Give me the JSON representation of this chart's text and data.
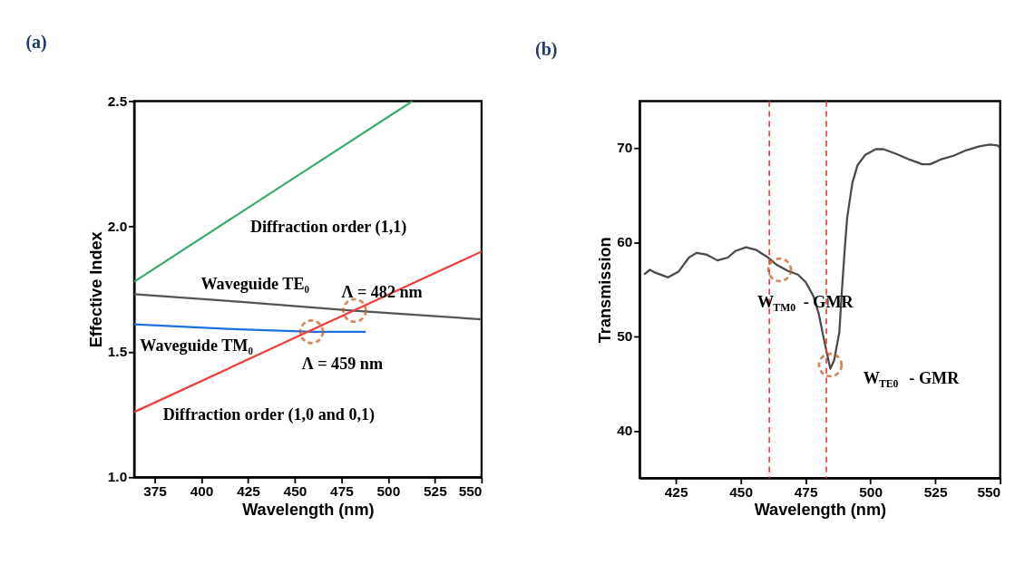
{
  "chart_data": [
    {
      "type": "line",
      "title": "(a)",
      "xlabel": "Wavelength (nm)",
      "ylabel": "Effective Index",
      "xlim": [
        364,
        550
      ],
      "xticks": [
        375,
        400,
        425,
        450,
        475,
        500,
        525,
        550
      ],
      "ylim": [
        1.0,
        2.5
      ],
      "yticks": [
        {
          "value": 1.0,
          "label": "1.0"
        },
        {
          "value": 1.5,
          "label": "1.5"
        },
        {
          "value": 2.0,
          "label": "2.0"
        },
        {
          "value": 2.5,
          "label": "2.5"
        }
      ],
      "grid": false,
      "legend": false,
      "line_style": "solid",
      "marker": "none",
      "series": [
        {
          "name": "Diffraction order (1,1)",
          "color": "#3daa6e",
          "x": [
            364,
            513
          ],
          "values": [
            1.78,
            2.5
          ]
        },
        {
          "name": "Waveguide TE₀",
          "color": "#555555",
          "x": [
            364,
            420,
            480,
            550
          ],
          "values": [
            1.73,
            1.7,
            1.665,
            1.63
          ]
        },
        {
          "name": "Waveguide TM₀",
          "color": "#1f6fe0",
          "x": [
            364,
            420,
            460,
            488
          ],
          "values": [
            1.61,
            1.59,
            1.58,
            1.58
          ]
        },
        {
          "name": "Diffraction order (1,0 and 0,1)",
          "color": "#e8413f",
          "x": [
            364,
            550
          ],
          "values": [
            1.26,
            1.9
          ]
        }
      ],
      "annotations": [
        {
          "text": "Λ = 482 nm",
          "x": 482,
          "y": 1.665
        },
        {
          "text": "Λ = 459 nm",
          "x": 459,
          "y": 1.58
        }
      ]
    },
    {
      "type": "line",
      "title": "(b)",
      "xlabel": "Wavelength (nm)",
      "ylabel": "Transmission",
      "xlim": [
        411,
        550
      ],
      "xticks": [
        425,
        450,
        475,
        500,
        525,
        550
      ],
      "ylim": [
        35,
        75
      ],
      "yticks": [
        40,
        50,
        60,
        70
      ],
      "grid": false,
      "line_style": "solid",
      "marker": "none",
      "series": [
        {
          "color": "#4a4a4a",
          "x": [
            412.7,
            415,
            417,
            422,
            426,
            430,
            433,
            437,
            441,
            445,
            448,
            452,
            456,
            460,
            464,
            468,
            472,
            475,
            478,
            480,
            482,
            484.5,
            486,
            488,
            489,
            490,
            491,
            493,
            495,
            498,
            502,
            505,
            510,
            515,
            520,
            523,
            527,
            532,
            537,
            542,
            546,
            549,
            550
          ],
          "values": [
            56.6,
            57.1,
            56.8,
            56.3,
            56.9,
            58.4,
            58.9,
            58.7,
            58.1,
            58.4,
            59.1,
            59.5,
            59.2,
            58.5,
            57.6,
            57.0,
            56.6,
            55.8,
            54.3,
            52.5,
            49.8,
            46.6,
            47.5,
            50.5,
            55.0,
            59.0,
            62.6,
            66.3,
            68.2,
            69.3,
            69.9,
            69.9,
            69.4,
            68.8,
            68.3,
            68.3,
            68.8,
            69.2,
            69.8,
            70.2,
            70.4,
            70.3,
            70.0
          ]
        }
      ],
      "ref_lines": [
        {
          "axis": "x",
          "value": 461,
          "color": "#e8413f",
          "line_style": "dashed"
        },
        {
          "axis": "x",
          "value": 483,
          "color": "#e8413f",
          "line_style": "dashed"
        }
      ],
      "annotations": [
        {
          "text": "W$_{TM0}$ - GMR",
          "x": 465,
          "y": 57.1
        },
        {
          "text": "W$_{TE0}$ - GMR",
          "x": 484.5,
          "y": 47
        }
      ]
    }
  ]
}
